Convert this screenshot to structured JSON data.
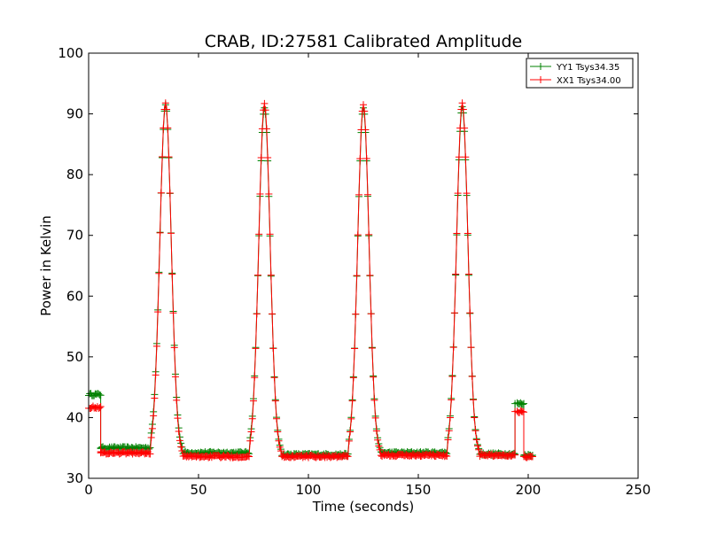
{
  "chart_data": {
    "type": "line",
    "title": "CRAB, ID:27581 Calibrated Amplitude",
    "xlabel": "Time (seconds)",
    "ylabel": "Power in Kelvin",
    "xlim": [
      0,
      250
    ],
    "ylim": [
      30,
      100
    ],
    "xticks": [
      0,
      50,
      100,
      150,
      200,
      250
    ],
    "yticks": [
      30,
      40,
      50,
      60,
      70,
      80,
      90,
      100
    ],
    "xtick_labels": [
      "0",
      "50",
      "100",
      "150",
      "200",
      "250"
    ],
    "ytick_labels": [
      "30",
      "40",
      "50",
      "60",
      "70",
      "80",
      "90",
      "100"
    ],
    "grid": false,
    "legend_position": "top-right",
    "marker": "+",
    "series": [
      {
        "name": "YY1 Tsys34.35",
        "color": "#008000",
        "baseline_segments": [
          {
            "x_start": 0,
            "x_end": 5.5,
            "y": 43.8
          },
          {
            "x_start": 5.5,
            "x_end": 28,
            "y": 35.0
          },
          {
            "x_start": 43,
            "x_end": 73,
            "y": 34.2
          },
          {
            "x_start": 88,
            "x_end": 118,
            "y": 33.9
          },
          {
            "x_start": 133,
            "x_end": 163,
            "y": 34.2
          },
          {
            "x_start": 178,
            "x_end": 194,
            "y": 34.0
          },
          {
            "x_start": 195,
            "x_end": 198,
            "y": 42.3
          },
          {
            "x_start": 198.5,
            "x_end": 202,
            "y": 33.8
          }
        ],
        "peaks": [
          {
            "x": 35,
            "y": 91.5
          },
          {
            "x": 80,
            "y": 91.0
          },
          {
            "x": 125,
            "y": 91.0
          },
          {
            "x": 170,
            "y": 91.2
          }
        ]
      },
      {
        "name": "XX1 Tsys34.00",
        "color": "#ff0000",
        "baseline_segments": [
          {
            "x_start": 0,
            "x_end": 5.5,
            "y": 41.7
          },
          {
            "x_start": 5.5,
            "x_end": 28,
            "y": 34.2
          },
          {
            "x_start": 43,
            "x_end": 73,
            "y": 33.6
          },
          {
            "x_start": 88,
            "x_end": 118,
            "y": 33.6
          },
          {
            "x_start": 133,
            "x_end": 163,
            "y": 33.8
          },
          {
            "x_start": 178,
            "x_end": 194,
            "y": 33.8
          },
          {
            "x_start": 195,
            "x_end": 198,
            "y": 41.0
          },
          {
            "x_start": 198.5,
            "x_end": 202,
            "y": 33.6
          }
        ],
        "peaks": [
          {
            "x": 35,
            "y": 91.8
          },
          {
            "x": 80,
            "y": 91.7
          },
          {
            "x": 125,
            "y": 91.5
          },
          {
            "x": 170,
            "y": 91.8
          }
        ]
      }
    ]
  }
}
